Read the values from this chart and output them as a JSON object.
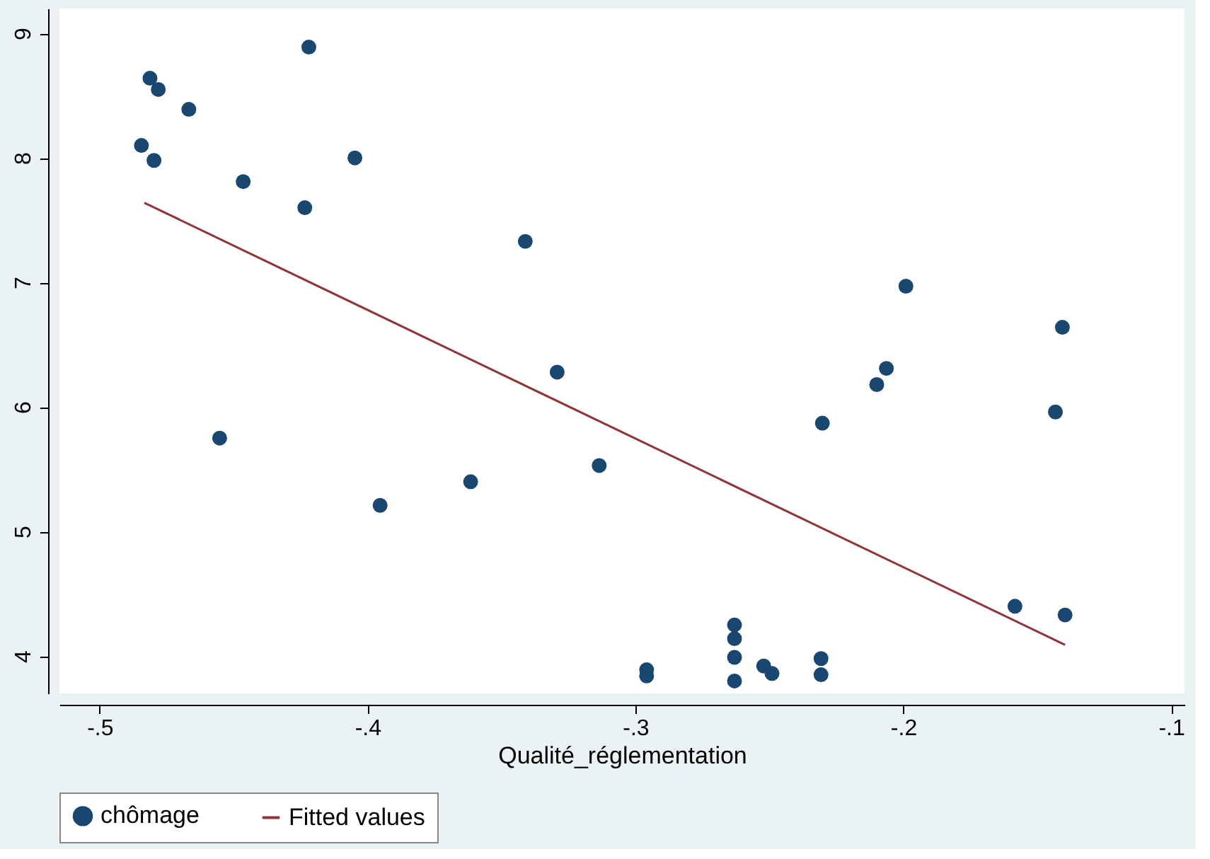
{
  "chart_data": {
    "type": "scatter",
    "xlabel": "Qualité_réglementation",
    "legend": "bottom",
    "grid": false,
    "marker": "circle",
    "xlim": [
      -0.515,
      -0.095
    ],
    "xticks": [
      {
        "value": -0.5,
        "label": "-.5"
      },
      {
        "value": -0.4,
        "label": "-.4"
      },
      {
        "value": -0.3,
        "label": "-.3"
      },
      {
        "value": -0.2,
        "label": "-.2"
      },
      {
        "value": -0.1,
        "label": "-.1"
      }
    ],
    "ylim": [
      3.7,
      9.2
    ],
    "yticks": [
      4,
      5,
      6,
      7,
      8,
      9
    ],
    "series": [
      {
        "name": "chômage",
        "color": "#1a476f",
        "x": [
          -0.4844,
          -0.4812,
          -0.4781,
          -0.4797,
          -0.4667,
          -0.4552,
          -0.4464,
          -0.4219,
          -0.4234,
          -0.4047,
          -0.3953,
          -0.3615,
          -0.3411,
          -0.3292,
          -0.3135,
          -0.2958,
          -0.2958,
          -0.263,
          -0.263,
          -0.263,
          -0.263,
          -0.2521,
          -0.249,
          -0.2307,
          -0.2307,
          -0.2302,
          -0.2099,
          -0.2063,
          -0.199,
          -0.1583,
          -0.1432,
          -0.1406,
          -0.1396
        ],
        "values": [
          8.1,
          8.64,
          8.55,
          7.98,
          8.39,
          5.75,
          7.81,
          8.89,
          7.6,
          8.0,
          5.21,
          5.4,
          7.33,
          6.28,
          5.53,
          3.89,
          3.84,
          4.25,
          4.14,
          3.99,
          3.8,
          3.92,
          3.86,
          3.98,
          3.85,
          5.87,
          6.18,
          6.31,
          6.97,
          4.4,
          5.96,
          6.64,
          4.33
        ]
      },
      {
        "name": "Fitted values",
        "type": "line",
        "color": "#90353b",
        "marker": "none",
        "x": [
          -0.4833,
          -0.1396
        ],
        "values": [
          7.64,
          4.09
        ]
      }
    ]
  }
}
